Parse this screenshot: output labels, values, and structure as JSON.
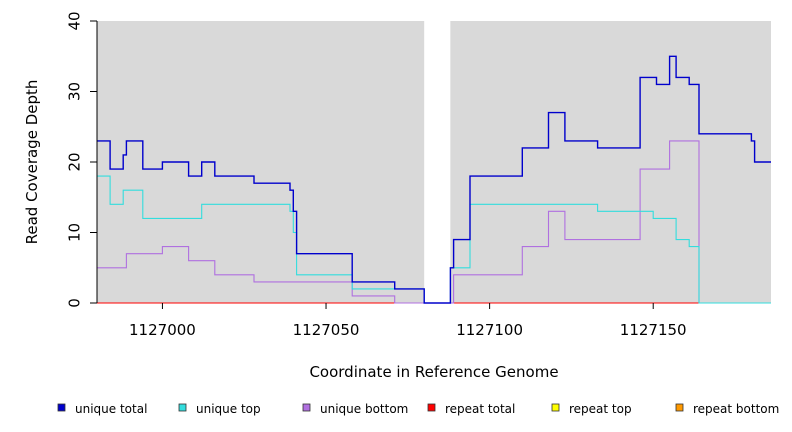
{
  "chart_data": {
    "type": "line",
    "style": "step",
    "title": "",
    "xlabel": "Coordinate in Reference Genome",
    "ylabel": "Read Coverage Depth",
    "xlim": [
      1126980,
      1127186
    ],
    "ylim": [
      0,
      40
    ],
    "x_ticks": [
      1127000,
      1127050,
      1127100,
      1127150
    ],
    "y_ticks": [
      0,
      10,
      20,
      30,
      40
    ],
    "gap": [
      1127080,
      1127088
    ],
    "grid": false,
    "legend_position": "bottom",
    "series": [
      {
        "name": "unique total",
        "color": "#0000cc",
        "steps": [
          [
            1126980,
            23
          ],
          [
            1126984,
            19
          ],
          [
            1126988,
            21
          ],
          [
            1126989,
            23
          ],
          [
            1126994,
            19
          ],
          [
            1127000,
            20
          ],
          [
            1127008,
            18
          ],
          [
            1127012,
            20
          ],
          [
            1127016,
            18
          ],
          [
            1127028,
            17
          ],
          [
            1127039,
            16
          ],
          [
            1127040,
            13
          ],
          [
            1127041,
            7
          ],
          [
            1127058,
            3
          ],
          [
            1127071,
            2
          ],
          [
            1127080,
            0
          ],
          [
            1127088,
            5
          ],
          [
            1127089,
            9
          ],
          [
            1127094,
            18
          ],
          [
            1127110,
            22
          ],
          [
            1127118,
            27
          ],
          [
            1127123,
            23
          ],
          [
            1127133,
            22
          ],
          [
            1127146,
            32
          ],
          [
            1127151,
            31
          ],
          [
            1127155,
            35
          ],
          [
            1127157,
            32
          ],
          [
            1127161,
            31
          ],
          [
            1127164,
            24
          ],
          [
            1127180,
            23
          ],
          [
            1127181,
            20
          ],
          [
            1127186,
            20
          ]
        ]
      },
      {
        "name": "unique top",
        "color": "#33dddd",
        "steps": [
          [
            1126980,
            18
          ],
          [
            1126984,
            14
          ],
          [
            1126988,
            16
          ],
          [
            1126994,
            12
          ],
          [
            1127012,
            14
          ],
          [
            1127039,
            13
          ],
          [
            1127040,
            10
          ],
          [
            1127041,
            4
          ],
          [
            1127058,
            2
          ],
          [
            1127071,
            2
          ],
          [
            1127080,
            0
          ],
          [
            1127088,
            5
          ],
          [
            1127094,
            14
          ],
          [
            1127133,
            13
          ],
          [
            1127150,
            12
          ],
          [
            1127157,
            9
          ],
          [
            1127161,
            8
          ],
          [
            1127164,
            0
          ],
          [
            1127186,
            0
          ]
        ]
      },
      {
        "name": "unique bottom",
        "color": "#b070e0",
        "steps": [
          [
            1126980,
            5
          ],
          [
            1126989,
            7
          ],
          [
            1127000,
            8
          ],
          [
            1127008,
            6
          ],
          [
            1127016,
            4
          ],
          [
            1127028,
            3
          ],
          [
            1127058,
            1
          ],
          [
            1127071,
            0
          ],
          [
            1127080,
            0
          ],
          [
            1127088,
            0
          ],
          [
            1127089,
            4
          ],
          [
            1127110,
            8
          ],
          [
            1127118,
            13
          ],
          [
            1127123,
            9
          ],
          [
            1127146,
            19
          ],
          [
            1127155,
            23
          ],
          [
            1127164,
            0
          ],
          [
            1127186,
            0
          ]
        ]
      },
      {
        "name": "repeat total",
        "color": "#ff0000",
        "steps": [
          [
            1126980,
            0
          ],
          [
            1127186,
            0
          ]
        ]
      },
      {
        "name": "repeat top",
        "color": "#ffff00",
        "steps": [
          [
            1126980,
            0
          ],
          [
            1127186,
            0
          ]
        ]
      },
      {
        "name": "repeat bottom",
        "color": "#ff9900",
        "steps": [
          [
            1126980,
            0
          ],
          [
            1127186,
            0
          ]
        ]
      }
    ]
  }
}
